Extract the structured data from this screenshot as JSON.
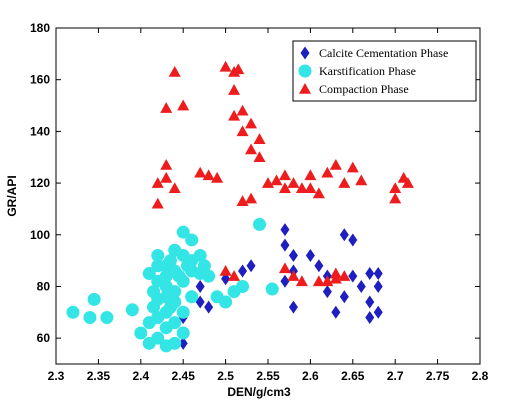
{
  "chart_data": {
    "type": "scatter",
    "title": "",
    "xlabel": "DEN/g/cm3",
    "ylabel": "GR/API",
    "xlim": [
      2.3,
      2.8
    ],
    "ylim": [
      50,
      180
    ],
    "xticks": [
      "2.3",
      "2.35",
      "2.4",
      "2.45",
      "2.5",
      "2.55",
      "2.6",
      "2.65",
      "2.7",
      "2.75",
      "2.8"
    ],
    "yticks": [
      "60",
      "80",
      "100",
      "120",
      "140",
      "160",
      "180"
    ],
    "grid": false,
    "legend_position": "top-right",
    "series": [
      {
        "name": "Calcite Cementation Phase",
        "marker": "diamond",
        "color": "#1f1fbf",
        "points": [
          [
            2.45,
            58
          ],
          [
            2.45,
            68
          ],
          [
            2.46,
            76
          ],
          [
            2.47,
            74
          ],
          [
            2.48,
            72
          ],
          [
            2.47,
            80
          ],
          [
            2.52,
            86
          ],
          [
            2.53,
            88
          ],
          [
            2.5,
            83
          ],
          [
            2.57,
            102
          ],
          [
            2.57,
            96
          ],
          [
            2.58,
            92
          ],
          [
            2.58,
            86
          ],
          [
            2.57,
            82
          ],
          [
            2.58,
            72
          ],
          [
            2.6,
            92
          ],
          [
            2.61,
            88
          ],
          [
            2.62,
            84
          ],
          [
            2.62,
            78
          ],
          [
            2.63,
            70
          ],
          [
            2.64,
            76
          ],
          [
            2.64,
            100
          ],
          [
            2.65,
            98
          ],
          [
            2.65,
            84
          ],
          [
            2.66,
            80
          ],
          [
            2.67,
            74
          ],
          [
            2.67,
            85
          ],
          [
            2.68,
            85
          ],
          [
            2.68,
            80
          ],
          [
            2.68,
            70
          ],
          [
            2.67,
            68
          ]
        ]
      },
      {
        "name": "Karstification Phase",
        "marker": "circle",
        "color": "#33e5e5",
        "points": [
          [
            2.32,
            70
          ],
          [
            2.34,
            68
          ],
          [
            2.345,
            75
          ],
          [
            2.36,
            68
          ],
          [
            2.39,
            71
          ],
          [
            2.4,
            62
          ],
          [
            2.41,
            58
          ],
          [
            2.41,
            66
          ],
          [
            2.415,
            72
          ],
          [
            2.415,
            78
          ],
          [
            2.41,
            85
          ],
          [
            2.42,
            92
          ],
          [
            2.42,
            88
          ],
          [
            2.42,
            82
          ],
          [
            2.42,
            75
          ],
          [
            2.42,
            68
          ],
          [
            2.42,
            60
          ],
          [
            2.43,
            57
          ],
          [
            2.43,
            64
          ],
          [
            2.43,
            70
          ],
          [
            2.43,
            76
          ],
          [
            2.43,
            80
          ],
          [
            2.43,
            84
          ],
          [
            2.43,
            88
          ],
          [
            2.435,
            90
          ],
          [
            2.435,
            72
          ],
          [
            2.44,
            94
          ],
          [
            2.44,
            86
          ],
          [
            2.44,
            78
          ],
          [
            2.44,
            74
          ],
          [
            2.44,
            66
          ],
          [
            2.44,
            58
          ],
          [
            2.445,
            84
          ],
          [
            2.45,
            101
          ],
          [
            2.45,
            92
          ],
          [
            2.45,
            82
          ],
          [
            2.45,
            70
          ],
          [
            2.45,
            62
          ],
          [
            2.455,
            88
          ],
          [
            2.46,
            98
          ],
          [
            2.46,
            90
          ],
          [
            2.46,
            86
          ],
          [
            2.46,
            76
          ],
          [
            2.47,
            92
          ],
          [
            2.47,
            85
          ],
          [
            2.475,
            88
          ],
          [
            2.48,
            84
          ],
          [
            2.49,
            76
          ],
          [
            2.5,
            74
          ],
          [
            2.51,
            78
          ],
          [
            2.52,
            80
          ],
          [
            2.54,
            104
          ],
          [
            2.555,
            79
          ]
        ]
      },
      {
        "name": "Compaction Phase",
        "marker": "triangle",
        "color": "#ee1c1c",
        "points": [
          [
            2.42,
            112
          ],
          [
            2.42,
            120
          ],
          [
            2.43,
            127
          ],
          [
            2.43,
            122
          ],
          [
            2.44,
            118
          ],
          [
            2.43,
            149
          ],
          [
            2.44,
            163
          ],
          [
            2.45,
            150
          ],
          [
            2.47,
            124
          ],
          [
            2.48,
            123
          ],
          [
            2.49,
            122
          ],
          [
            2.5,
            165
          ],
          [
            2.51,
            163
          ],
          [
            2.51,
            156
          ],
          [
            2.515,
            164
          ],
          [
            2.51,
            146
          ],
          [
            2.52,
            148
          ],
          [
            2.52,
            140
          ],
          [
            2.53,
            133
          ],
          [
            2.53,
            143
          ],
          [
            2.54,
            137
          ],
          [
            2.54,
            130
          ],
          [
            2.52,
            113
          ],
          [
            2.53,
            114
          ],
          [
            2.55,
            120
          ],
          [
            2.56,
            121
          ],
          [
            2.57,
            123
          ],
          [
            2.57,
            118
          ],
          [
            2.58,
            120
          ],
          [
            2.6,
            123
          ],
          [
            2.6,
            118
          ],
          [
            2.59,
            118
          ],
          [
            2.61,
            116
          ],
          [
            2.62,
            124
          ],
          [
            2.63,
            127
          ],
          [
            2.64,
            120
          ],
          [
            2.65,
            126
          ],
          [
            2.66,
            121
          ],
          [
            2.57,
            87
          ],
          [
            2.58,
            84
          ],
          [
            2.59,
            82
          ],
          [
            2.61,
            82
          ],
          [
            2.62,
            82
          ],
          [
            2.63,
            83
          ],
          [
            2.63,
            85
          ],
          [
            2.64,
            84
          ],
          [
            2.5,
            86
          ],
          [
            2.51,
            84
          ],
          [
            2.7,
            114
          ],
          [
            2.7,
            118
          ],
          [
            2.71,
            122
          ],
          [
            2.715,
            120
          ]
        ]
      }
    ]
  }
}
